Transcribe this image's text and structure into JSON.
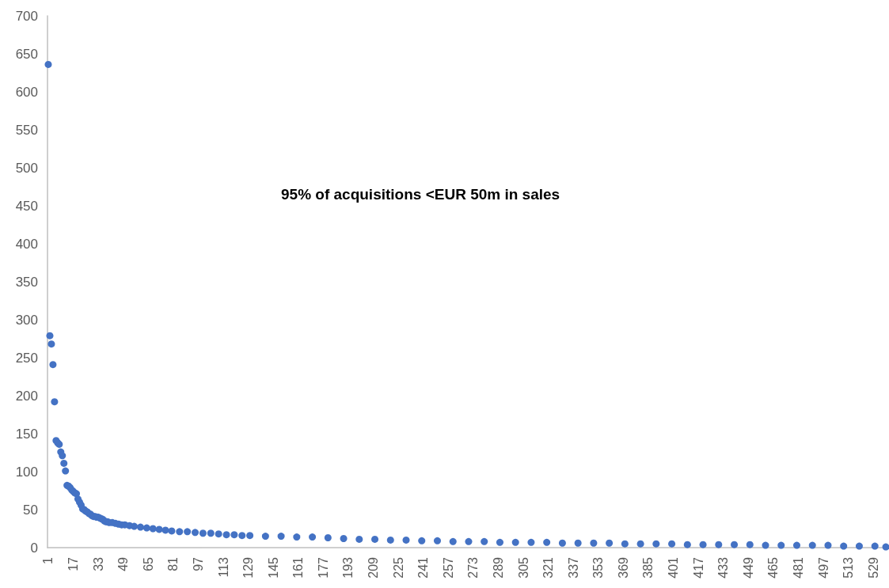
{
  "chart_data": {
    "type": "scatter",
    "x": [
      1,
      2,
      3,
      4,
      5,
      6,
      7,
      8,
      9,
      10,
      11,
      12,
      13,
      14,
      15,
      16,
      17,
      18,
      19,
      20,
      21,
      22,
      23,
      24,
      25,
      26,
      27,
      28,
      29,
      30,
      31,
      32,
      33,
      34,
      35,
      36,
      37,
      38,
      39,
      40,
      42,
      44,
      46,
      48,
      50,
      53,
      56,
      60,
      64,
      68,
      72,
      76,
      80,
      85,
      90,
      95,
      100,
      105,
      110,
      115,
      120,
      125,
      130,
      140,
      150,
      160,
      170,
      180,
      190,
      200,
      210,
      220,
      230,
      240,
      250,
      260,
      270,
      280,
      290,
      300,
      310,
      320,
      330,
      340,
      350,
      360,
      370,
      380,
      390,
      400,
      410,
      420,
      430,
      440,
      450,
      460,
      470,
      480,
      490,
      500,
      510,
      520,
      530,
      537
    ],
    "series": [
      {
        "color": "#4472c4",
        "values": [
          636,
          279,
          268,
          241,
          192,
          141,
          138,
          136,
          126,
          121,
          111,
          101,
          82,
          81,
          79,
          76,
          74,
          72,
          71,
          64,
          60,
          56,
          51,
          50,
          48,
          47,
          45,
          44,
          42,
          41,
          41,
          40,
          40,
          39,
          38,
          37,
          35,
          34,
          34,
          33,
          33,
          32,
          31,
          30,
          30,
          29,
          28,
          27,
          26,
          25,
          24,
          23,
          22,
          21,
          21,
          20,
          19,
          19,
          18,
          17,
          17,
          16,
          16,
          15,
          15,
          14,
          14,
          13,
          12,
          11,
          11,
          10,
          10,
          9,
          9,
          8,
          8,
          8,
          7,
          7,
          7,
          7,
          6,
          6,
          6,
          6,
          5,
          5,
          5,
          5,
          4,
          4,
          4,
          4,
          4,
          3,
          3,
          3,
          3,
          3,
          2,
          2,
          2,
          1
        ]
      }
    ],
    "xlim": [
      0.5,
      537.5
    ],
    "xticks": [
      1,
      17,
      33,
      49,
      65,
      81,
      97,
      113,
      129,
      145,
      161,
      177,
      193,
      209,
      225,
      241,
      257,
      273,
      289,
      305,
      321,
      337,
      353,
      369,
      385,
      401,
      417,
      433,
      449,
      465,
      481,
      497,
      513,
      529
    ],
    "ylim": [
      0,
      700
    ],
    "yticks": [
      0,
      50,
      100,
      150,
      200,
      250,
      300,
      350,
      400,
      450,
      500,
      550,
      600,
      650,
      700
    ],
    "grid": false,
    "marker": "circle",
    "annotations": [
      "95% of acquisitions <EUR 50m in sales"
    ]
  }
}
